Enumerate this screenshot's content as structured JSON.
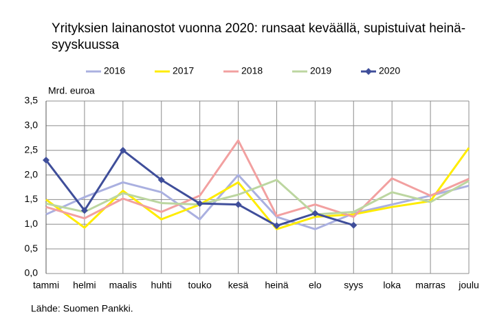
{
  "chart_data": {
    "type": "line",
    "title": "Yrityksien lainanostot vuonna 2020: runsaat keväällä, supistuivat heinä-syyskuussa",
    "y_axis_label": "Mrd. euroa",
    "source": "Lähde: Suomen Pankki.",
    "categories": [
      "tammi",
      "helmi",
      "maalis",
      "huhti",
      "touko",
      "kesä",
      "heinä",
      "elo",
      "syys",
      "loka",
      "marras",
      "joulu"
    ],
    "series": [
      {
        "name": "2016",
        "color": "#aab0e0",
        "values": [
          1.2,
          1.55,
          1.85,
          1.65,
          1.1,
          2.0,
          1.15,
          0.9,
          1.22,
          1.4,
          1.58,
          1.78
        ]
      },
      {
        "name": "2017",
        "color": "#ffec00",
        "values": [
          1.5,
          0.93,
          1.68,
          1.1,
          1.4,
          1.85,
          0.9,
          1.15,
          1.2,
          1.35,
          1.47,
          2.55
        ]
      },
      {
        "name": "2018",
        "color": "#f2a0a0",
        "values": [
          1.35,
          1.12,
          1.52,
          1.25,
          1.58,
          2.7,
          1.17,
          1.4,
          1.15,
          1.93,
          1.58,
          1.92
        ]
      },
      {
        "name": "2019",
        "color": "#bcd6a0",
        "values": [
          1.42,
          1.25,
          1.63,
          1.43,
          1.4,
          1.6,
          1.9,
          1.2,
          1.25,
          1.65,
          1.45,
          1.88
        ]
      },
      {
        "name": "2020",
        "color": "#3f4e9a",
        "marker": "diamond",
        "values": [
          2.3,
          1.28,
          2.5,
          1.9,
          1.42,
          1.4,
          0.97,
          1.22,
          0.98,
          null,
          null,
          null
        ]
      }
    ],
    "ylim": [
      0,
      3.5
    ],
    "yticks": [
      {
        "value": 0,
        "label": "0,0"
      },
      {
        "value": 0.5,
        "label": "0,5"
      },
      {
        "value": 1,
        "label": "1,0"
      },
      {
        "value": 1.5,
        "label": "1,5"
      },
      {
        "value": 2,
        "label": "2,0"
      },
      {
        "value": 2.5,
        "label": "2,5"
      },
      {
        "value": 3,
        "label": "3,0"
      },
      {
        "value": 3.5,
        "label": "3,5"
      }
    ],
    "grid": true
  }
}
